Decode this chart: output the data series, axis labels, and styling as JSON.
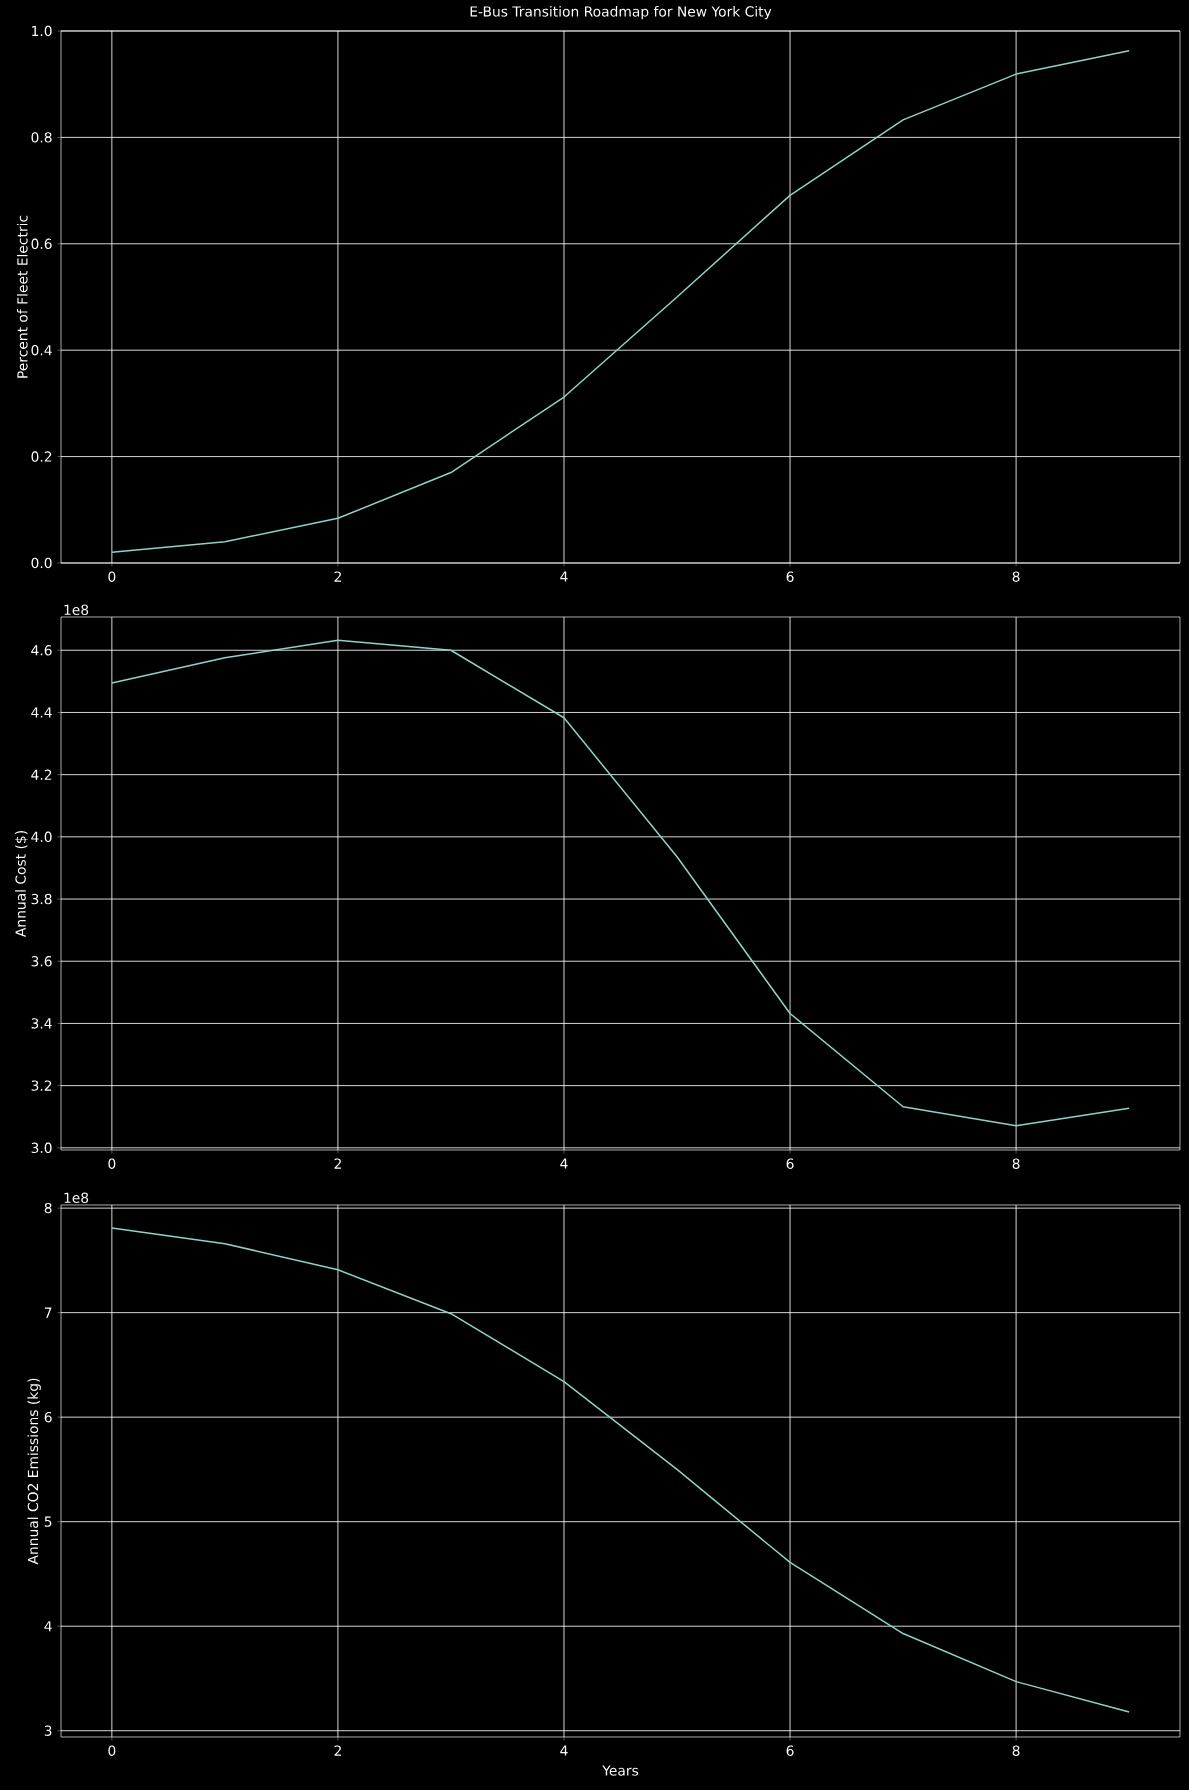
{
  "chart_data": [
    {
      "type": "line",
      "title": "E-Bus Transition Roadmap for New York City",
      "ylabel": "Percent of Fleet Electric",
      "x": [
        0,
        1,
        2,
        3,
        4,
        5,
        6,
        7,
        8,
        9
      ],
      "color": "#8dd3c7",
      "grid": true,
      "values": [
        0.02,
        0.04,
        0.084,
        0.17,
        0.312,
        0.5,
        0.691,
        0.833,
        0.919,
        0.963
      ],
      "xlim": [
        -0.45,
        9.45
      ],
      "xticks": [
        0,
        2,
        4,
        6,
        8
      ],
      "ylim": [
        0,
        1
      ],
      "yticks": [
        {
          "value": 0,
          "label": "0.0"
        },
        0.2,
        0.4,
        0.6,
        0.8,
        {
          "value": 1,
          "label": "1.0"
        }
      ]
    },
    {
      "type": "line",
      "ylabel": "Annual Cost ($)",
      "annotations": [
        "1e8"
      ],
      "x": [
        0,
        1,
        2,
        3,
        4,
        5,
        6,
        7,
        8,
        9
      ],
      "color": "#8dd3c7",
      "grid": true,
      "values": [
        4.495,
        4.576,
        4.632,
        4.6,
        4.383,
        3.936,
        3.432,
        3.132,
        3.071,
        3.127
      ],
      "xlim": [
        -0.45,
        9.45
      ],
      "xticks": [
        0,
        2,
        4,
        6,
        8
      ],
      "ylim": [
        2.993,
        4.707
      ],
      "yticks": [
        {
          "value": 3,
          "label": "3.0"
        },
        3.2,
        3.4,
        3.6,
        3.8,
        {
          "value": 4,
          "label": "4.0"
        },
        4.2,
        4.4,
        4.6
      ]
    },
    {
      "type": "line",
      "xlabel": "Years",
      "ylabel": "Annual CO2 Emissions (kg)",
      "annotations": [
        "1e8"
      ],
      "x": [
        0,
        1,
        2,
        3,
        4,
        5,
        6,
        7,
        8,
        9
      ],
      "color": "#8dd3c7",
      "grid": true,
      "values": [
        7.81,
        7.66,
        7.41,
        6.99,
        6.34,
        5.5,
        4.61,
        3.93,
        3.47,
        3.18
      ],
      "xlim": [
        -0.45,
        9.45
      ],
      "xticks": [
        0,
        2,
        4,
        6,
        8
      ],
      "ylim": [
        2.94,
        8.03
      ],
      "yticks": [
        3,
        4,
        5,
        6,
        7,
        8
      ]
    }
  ]
}
